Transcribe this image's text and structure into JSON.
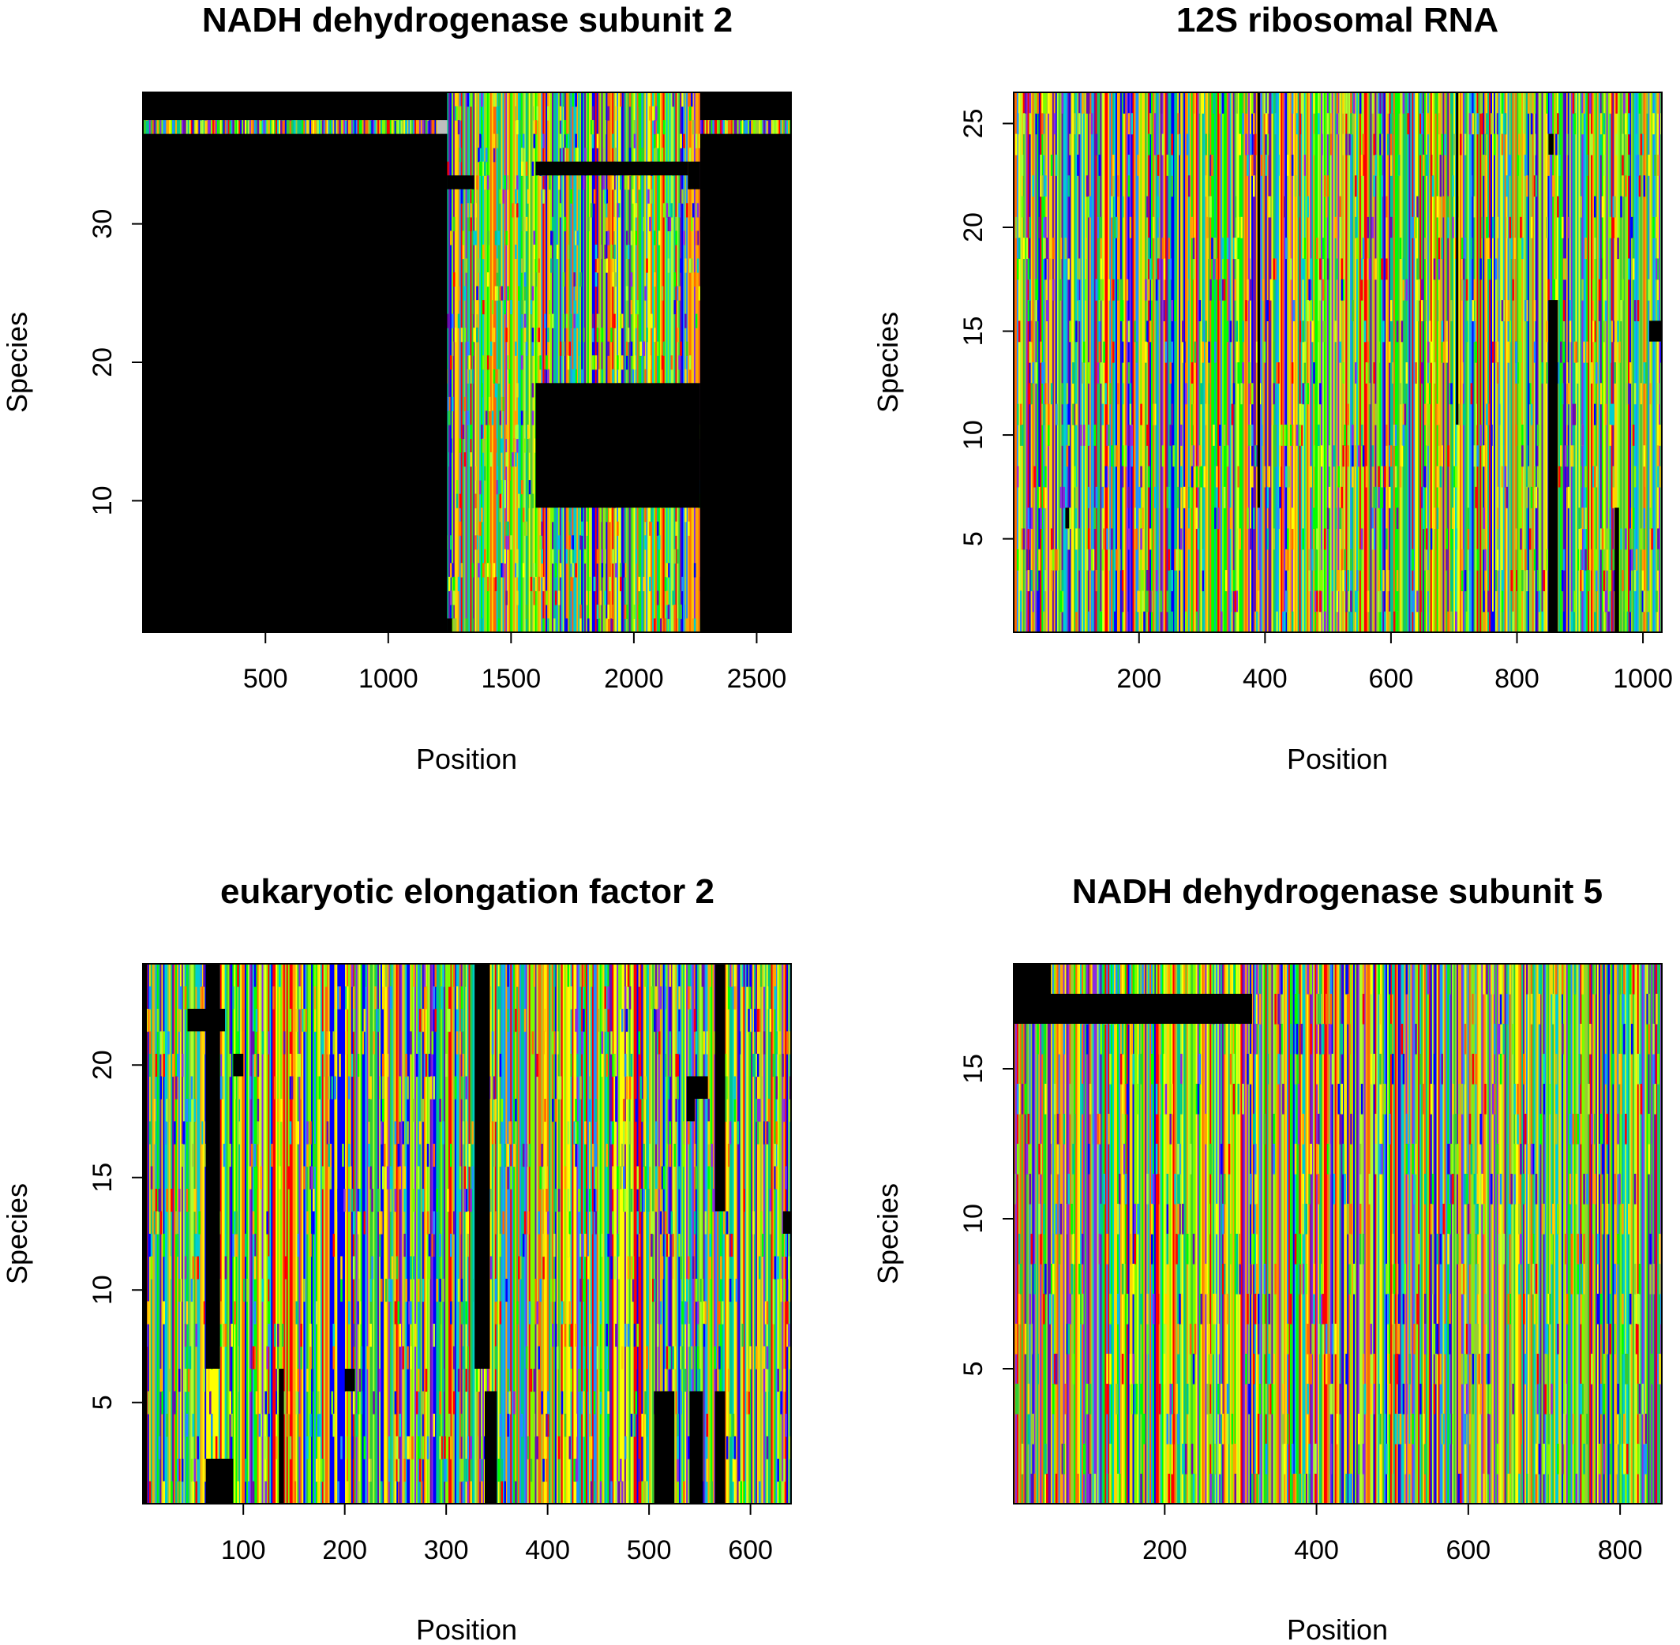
{
  "palette": {
    "gap": "#000000",
    "unknown": "#bebebe",
    "bases": [
      "#ff0000",
      "#ff6a00",
      "#ffa500",
      "#ffd700",
      "#ffff00",
      "#adff2f",
      "#7cfc00",
      "#00ff00",
      "#32cd32",
      "#00c78c",
      "#1e90ff",
      "#0000ff",
      "#6a0dad",
      "#8a2be2",
      "#00ced1",
      "#9acd32"
    ]
  },
  "chart_data": [
    {
      "type": "heatmap",
      "title": "NADH dehydrogenase subunit 2",
      "xlabel": "Position",
      "ylabel": "Species",
      "xlim": [
        1,
        2640
      ],
      "ylim": [
        0.5,
        39.5
      ],
      "xticks": [
        500,
        1000,
        1500,
        2000,
        2500
      ],
      "yticks": [
        10,
        20,
        30
      ],
      "n_positions": 2640,
      "n_species": 39,
      "seed": 11,
      "dense_columns": [],
      "gap_blocks": [
        {
          "x0": 1,
          "x1": 1240,
          "y0": 0.5,
          "y1": 36.5
        },
        {
          "x0": 1,
          "x1": 1240,
          "y0": 37.5,
          "y1": 39.5
        },
        {
          "x0": 1240,
          "x1": 1260,
          "y0": 0.5,
          "y1": 1.5
        },
        {
          "x0": 1240,
          "x1": 1350,
          "y0": 32.5,
          "y1": 33.5
        },
        {
          "x0": 1600,
          "x1": 2270,
          "y0": 9.5,
          "y1": 18.5
        },
        {
          "x0": 1600,
          "x1": 2220,
          "y0": 33.5,
          "y1": 34.5
        },
        {
          "x0": 2220,
          "x1": 2270,
          "y0": 32.5,
          "y1": 34.5
        },
        {
          "x0": 2270,
          "x1": 2640,
          "y0": 0.5,
          "y1": 36.5
        },
        {
          "x0": 2270,
          "x1": 2640,
          "y0": 37.5,
          "y1": 39.5
        }
      ],
      "unknown_blocks": [
        {
          "x0": 1200,
          "x1": 1240,
          "y0": 36.5,
          "y1": 37.5
        }
      ]
    },
    {
      "type": "heatmap",
      "title": "12S ribosomal RNA",
      "xlabel": "Position",
      "ylabel": "Species",
      "xlim": [
        1,
        1030
      ],
      "ylim": [
        0.5,
        26.5
      ],
      "xticks": [
        200,
        400,
        600,
        800,
        1000
      ],
      "yticks": [
        5,
        10,
        15,
        20,
        25
      ],
      "n_positions": 1030,
      "n_species": 26,
      "seed": 23,
      "dense_columns": [],
      "gap_blocks": [
        {
          "x0": 850,
          "x1": 865,
          "y0": 0.5,
          "y1": 16.5
        },
        {
          "x0": 850,
          "x1": 858,
          "y0": 23.5,
          "y1": 24.5
        },
        {
          "x0": 1010,
          "x1": 1030,
          "y0": 14.5,
          "y1": 15.5
        },
        {
          "x0": 955,
          "x1": 962,
          "y0": 0.5,
          "y1": 6.5
        },
        {
          "x0": 388,
          "x1": 392,
          "y0": 6.5,
          "y1": 26.5
        },
        {
          "x0": 703,
          "x1": 707,
          "y0": 10.5,
          "y1": 26.5
        },
        {
          "x0": 83,
          "x1": 89,
          "y0": 5.5,
          "y1": 6.5
        }
      ],
      "unknown_blocks": []
    },
    {
      "type": "heatmap",
      "title": "eukaryotic elongation factor 2",
      "xlabel": "Position",
      "ylabel": "Species",
      "xlim": [
        1,
        640
      ],
      "ylim": [
        0.5,
        24.5
      ],
      "xticks": [
        100,
        200,
        300,
        400,
        500,
        600
      ],
      "yticks": [
        5,
        10,
        15,
        20
      ],
      "n_positions": 640,
      "n_species": 24,
      "seed": 37,
      "dense_columns": [
        {
          "x0": 60,
          "x1": 75,
          "c": "#ffff00"
        },
        {
          "x0": 140,
          "x1": 148,
          "c": "#ff0000"
        },
        {
          "x0": 185,
          "x1": 200,
          "c": "#0000ff"
        },
        {
          "x0": 355,
          "x1": 365,
          "c": "#1e90ff"
        },
        {
          "x0": 420,
          "x1": 430,
          "c": "#ffff00"
        },
        {
          "x0": 465,
          "x1": 478,
          "c": "#ffff00"
        },
        {
          "x0": 485,
          "x1": 492,
          "c": "#ff0000"
        },
        {
          "x0": 600,
          "x1": 610,
          "c": "#ffd700"
        }
      ],
      "gap_blocks": [
        {
          "x0": 1,
          "x1": 5,
          "y0": 0.5,
          "y1": 24.5
        },
        {
          "x0": 63,
          "x1": 77,
          "y0": 6.5,
          "y1": 24.5
        },
        {
          "x0": 45,
          "x1": 82,
          "y0": 21.5,
          "y1": 22.5
        },
        {
          "x0": 63,
          "x1": 90,
          "y0": 0.5,
          "y1": 2.5
        },
        {
          "x0": 135,
          "x1": 140,
          "y0": 0.5,
          "y1": 6.5
        },
        {
          "x0": 328,
          "x1": 343,
          "y0": 6.5,
          "y1": 24.5
        },
        {
          "x0": 338,
          "x1": 350,
          "y0": 0.5,
          "y1": 5.5
        },
        {
          "x0": 505,
          "x1": 525,
          "y0": 0.5,
          "y1": 5.5
        },
        {
          "x0": 540,
          "x1": 553,
          "y0": 0.5,
          "y1": 5.5
        },
        {
          "x0": 537,
          "x1": 558,
          "y0": 18.5,
          "y1": 19.5
        },
        {
          "x0": 537,
          "x1": 545,
          "y0": 17.5,
          "y1": 18.5
        },
        {
          "x0": 565,
          "x1": 575,
          "y0": 0.5,
          "y1": 5.5
        },
        {
          "x0": 565,
          "x1": 575,
          "y0": 13.5,
          "y1": 24.5
        },
        {
          "x0": 90,
          "x1": 100,
          "y0": 19.5,
          "y1": 20.5
        },
        {
          "x0": 200,
          "x1": 210,
          "y0": 5.5,
          "y1": 6.5
        },
        {
          "x0": 632,
          "x1": 640,
          "y0": 12.5,
          "y1": 13.5
        }
      ],
      "unknown_blocks": []
    },
    {
      "type": "heatmap",
      "title": "NADH dehydrogenase subunit 5",
      "xlabel": "Position",
      "ylabel": "Species",
      "xlim": [
        1,
        855
      ],
      "ylim": [
        0.5,
        18.5
      ],
      "xticks": [
        200,
        400,
        600,
        800
      ],
      "yticks": [
        5,
        10,
        15
      ],
      "n_positions": 855,
      "n_species": 18,
      "seed": 53,
      "dense_columns": [],
      "gap_blocks": [
        {
          "x0": 1,
          "x1": 50,
          "y0": 17.5,
          "y1": 18.5
        },
        {
          "x0": 1,
          "x1": 315,
          "y0": 16.5,
          "y1": 17.5
        }
      ],
      "unknown_blocks": []
    }
  ]
}
